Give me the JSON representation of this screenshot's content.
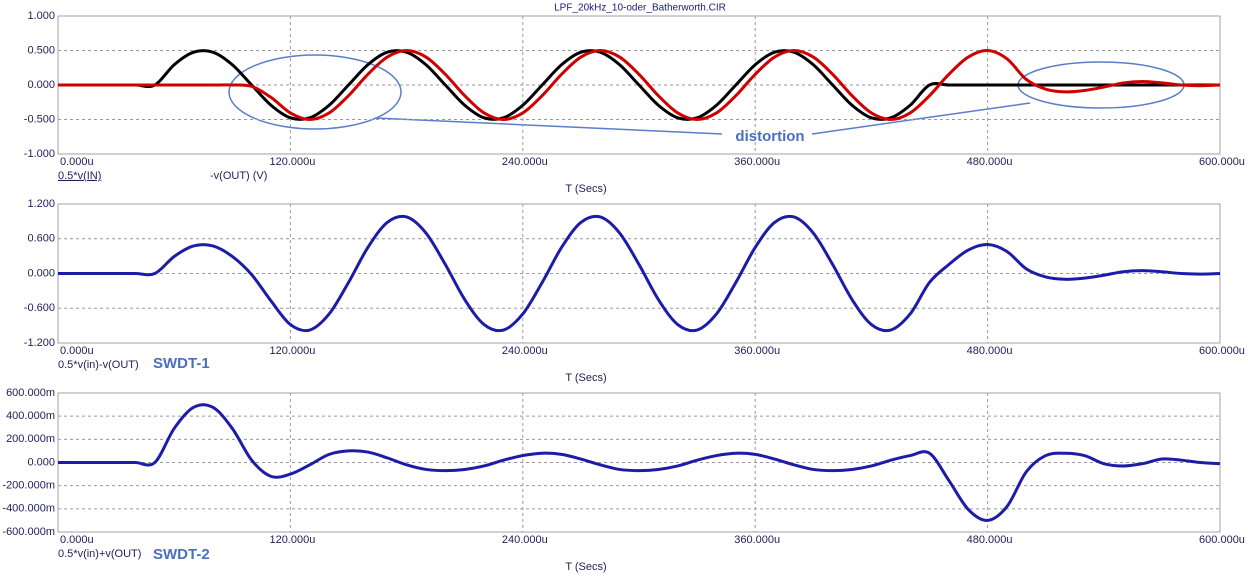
{
  "chart_data": [
    {
      "type": "line",
      "title": "LPF_20kHz_10-oder_Batherworth.CIR",
      "x_label": "T (Secs)",
      "annotations": [
        "distortion"
      ],
      "grid": true,
      "x": [
        0,
        10,
        20,
        30,
        40,
        50,
        60,
        70,
        80,
        90,
        100,
        110,
        120,
        130,
        140,
        150,
        160,
        170,
        180,
        190,
        200,
        210,
        220,
        230,
        240,
        250,
        260,
        270,
        280,
        290,
        300,
        310,
        320,
        330,
        340,
        350,
        360,
        370,
        380,
        390,
        400,
        410,
        420,
        430,
        440,
        450,
        460,
        470,
        480,
        490,
        500,
        510,
        520,
        530,
        540,
        550,
        560,
        570,
        580,
        590,
        600
      ],
      "xlim": [
        0,
        600
      ],
      "xticks": [
        {
          "value": 0,
          "label": "0.000u"
        },
        {
          "value": 120,
          "label": "120.000u"
        },
        {
          "value": 240,
          "label": "240.000u"
        },
        {
          "value": 360,
          "label": "360.000u"
        },
        {
          "value": 480,
          "label": "480.000u"
        },
        {
          "value": 600,
          "label": "600.000u"
        }
      ],
      "ylim": [
        -1,
        1
      ],
      "yticks": [
        {
          "value": 1,
          "label": "1.000"
        },
        {
          "value": 0.5,
          "label": "0.500"
        },
        {
          "value": 0,
          "label": "0.000"
        },
        {
          "value": -0.5,
          "label": "-0.500"
        },
        {
          "value": -1,
          "label": "-1.000"
        }
      ],
      "series": [
        {
          "name": "0.5*v(IN)",
          "color": "#000000",
          "values": [
            0,
            0,
            0,
            0,
            0,
            0,
            0.294,
            0.476,
            0.476,
            0.294,
            0,
            -0.294,
            -0.476,
            -0.476,
            -0.294,
            0,
            0.294,
            0.476,
            0.476,
            0.294,
            0,
            -0.294,
            -0.476,
            -0.476,
            -0.294,
            0,
            0.294,
            0.476,
            0.476,
            0.294,
            0,
            -0.294,
            -0.476,
            -0.476,
            -0.294,
            0,
            0.294,
            0.476,
            0.476,
            0.294,
            0,
            -0.294,
            -0.476,
            -0.476,
            -0.294,
            0,
            0,
            0,
            0,
            0,
            0,
            0,
            0,
            0,
            0,
            0,
            0,
            0,
            0,
            0,
            0
          ]
        },
        {
          "name": "-v(OUT) (V)",
          "color": "#d00000",
          "values": [
            0,
            0,
            0,
            0,
            0,
            0,
            0,
            0,
            0,
            0,
            -0.02,
            -0.18,
            -0.405,
            -0.5,
            -0.405,
            -0.155,
            0.155,
            0.405,
            0.5,
            0.405,
            0.155,
            -0.155,
            -0.405,
            -0.5,
            -0.405,
            -0.155,
            0.155,
            0.405,
            0.5,
            0.405,
            0.155,
            -0.155,
            -0.405,
            -0.5,
            -0.405,
            -0.155,
            0.155,
            0.405,
            0.5,
            0.405,
            0.155,
            -0.155,
            -0.405,
            -0.5,
            -0.405,
            -0.155,
            0.155,
            0.405,
            0.5,
            0.38,
            0.08,
            -0.06,
            -0.1,
            -0.08,
            -0.03,
            0.03,
            0.05,
            0.03,
            0,
            -0.01,
            0
          ]
        }
      ]
    },
    {
      "type": "line",
      "x_label": "T (Secs)",
      "annotations": [
        "SWDT-1"
      ],
      "grid": true,
      "x": [
        0,
        10,
        20,
        30,
        40,
        50,
        60,
        70,
        80,
        90,
        100,
        110,
        120,
        130,
        140,
        150,
        160,
        170,
        180,
        190,
        200,
        210,
        220,
        230,
        240,
        250,
        260,
        270,
        280,
        290,
        300,
        310,
        320,
        330,
        340,
        350,
        360,
        370,
        380,
        390,
        400,
        410,
        420,
        430,
        440,
        450,
        460,
        470,
        480,
        490,
        500,
        510,
        520,
        530,
        540,
        550,
        560,
        570,
        580,
        590,
        600
      ],
      "xlim": [
        0,
        600
      ],
      "xticks": [
        {
          "value": 0,
          "label": "0.000u"
        },
        {
          "value": 120,
          "label": "120.000u"
        },
        {
          "value": 240,
          "label": "240.000u"
        },
        {
          "value": 360,
          "label": "360.000u"
        },
        {
          "value": 480,
          "label": "480.000u"
        },
        {
          "value": 600,
          "label": "600.000u"
        }
      ],
      "ylim": [
        -1.2,
        1.2
      ],
      "yticks": [
        {
          "value": 1.2,
          "label": "1.200"
        },
        {
          "value": 0.6,
          "label": "0.600"
        },
        {
          "value": 0,
          "label": "0.000"
        },
        {
          "value": -0.6,
          "label": "-0.600"
        },
        {
          "value": -1.2,
          "label": "-1.200"
        }
      ],
      "series": [
        {
          "name": "0.5*v(in)-v(OUT)",
          "color": "#1c1ca8",
          "values": [
            0,
            0,
            0,
            0,
            0,
            0,
            0.294,
            0.476,
            0.476,
            0.294,
            -0.02,
            -0.474,
            -0.881,
            -0.976,
            -0.699,
            -0.155,
            0.449,
            0.881,
            0.976,
            0.699,
            0.155,
            -0.449,
            -0.881,
            -0.976,
            -0.699,
            -0.155,
            0.449,
            0.881,
            0.976,
            0.699,
            0.155,
            -0.449,
            -0.881,
            -0.976,
            -0.699,
            -0.155,
            0.449,
            0.881,
            0.976,
            0.699,
            0.155,
            -0.449,
            -0.881,
            -0.976,
            -0.699,
            -0.155,
            0.155,
            0.405,
            0.5,
            0.38,
            0.08,
            -0.06,
            -0.1,
            -0.08,
            -0.03,
            0.03,
            0.05,
            0.03,
            0,
            -0.01,
            0
          ]
        }
      ]
    },
    {
      "type": "line",
      "x_label": "T (Secs)",
      "annotations": [
        "SWDT-2"
      ],
      "grid": true,
      "x": [
        0,
        10,
        20,
        30,
        40,
        50,
        60,
        70,
        80,
        90,
        100,
        110,
        120,
        130,
        140,
        150,
        160,
        170,
        180,
        190,
        200,
        210,
        220,
        230,
        240,
        250,
        260,
        270,
        280,
        290,
        300,
        310,
        320,
        330,
        340,
        350,
        360,
        370,
        380,
        390,
        400,
        410,
        420,
        430,
        440,
        450,
        460,
        470,
        480,
        490,
        500,
        510,
        520,
        530,
        540,
        550,
        560,
        570,
        580,
        590,
        600
      ],
      "xlim": [
        0,
        600
      ],
      "xticks": [
        {
          "value": 0,
          "label": "0.000u"
        },
        {
          "value": 120,
          "label": "120.000u"
        },
        {
          "value": 240,
          "label": "240.000u"
        },
        {
          "value": 360,
          "label": "360.000u"
        },
        {
          "value": 480,
          "label": "480.000u"
        },
        {
          "value": 600,
          "label": "600.000u"
        }
      ],
      "ylim": [
        -0.6,
        0.6
      ],
      "yticks": [
        {
          "value": 0.6,
          "label": "600.000m"
        },
        {
          "value": 0.4,
          "label": "400.000m"
        },
        {
          "value": 0.2,
          "label": "200.000m"
        },
        {
          "value": 0,
          "label": "0.000"
        },
        {
          "value": -0.2,
          "label": "-200.000m"
        },
        {
          "value": -0.4,
          "label": "-400.000m"
        },
        {
          "value": -0.6,
          "label": "-600.000m"
        }
      ],
      "series": [
        {
          "name": "0.5*v(in)+v(OUT)",
          "color": "#1c1ca8",
          "values": [
            0,
            0,
            0,
            0,
            0,
            0,
            0.294,
            0.476,
            0.476,
            0.294,
            0.02,
            -0.12,
            -0.1,
            -0.02,
            0.07,
            0.1,
            0.09,
            0.04,
            -0.02,
            -0.06,
            -0.07,
            -0.06,
            -0.03,
            0.02,
            0.06,
            0.08,
            0.07,
            0.03,
            -0.02,
            -0.06,
            -0.07,
            -0.06,
            -0.03,
            0.02,
            0.06,
            0.08,
            0.07,
            0.03,
            -0.02,
            -0.06,
            -0.07,
            -0.06,
            -0.03,
            0.02,
            0.06,
            0.08,
            -0.155,
            -0.405,
            -0.5,
            -0.38,
            -0.08,
            0.06,
            0.08,
            0.06,
            -0.01,
            -0.03,
            -0.01,
            0.03,
            0.02,
            0,
            -0.01
          ]
        }
      ]
    }
  ]
}
